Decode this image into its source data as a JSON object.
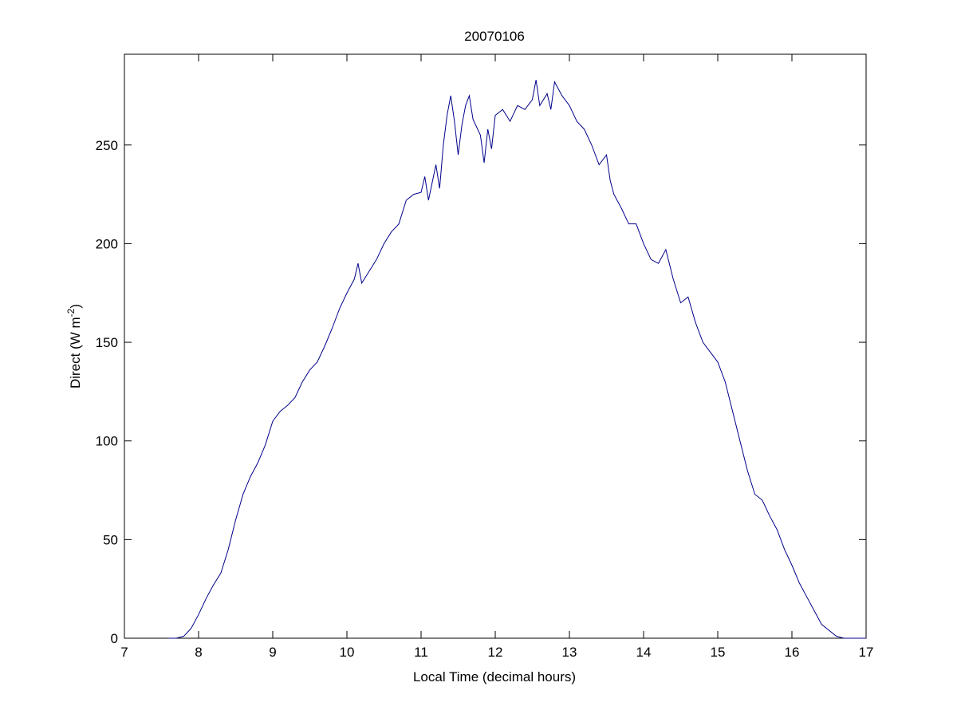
{
  "chart_data": {
    "type": "line",
    "title": "20070106",
    "xlabel": "Local Time (decimal hours)",
    "ylabel_parts": [
      "Direct (W m",
      "-2",
      ")"
    ],
    "x": [
      7.6,
      7.7,
      7.8,
      7.9,
      8.0,
      8.1,
      8.2,
      8.3,
      8.4,
      8.5,
      8.6,
      8.7,
      8.8,
      8.9,
      9.0,
      9.1,
      9.2,
      9.3,
      9.4,
      9.5,
      9.6,
      9.7,
      9.8,
      9.9,
      10.0,
      10.1,
      10.15,
      10.2,
      10.3,
      10.4,
      10.5,
      10.6,
      10.7,
      10.8,
      10.9,
      11.0,
      11.05,
      11.1,
      11.2,
      11.25,
      11.3,
      11.35,
      11.4,
      11.45,
      11.5,
      11.55,
      11.6,
      11.65,
      11.7,
      11.8,
      11.85,
      11.9,
      11.95,
      12.0,
      12.1,
      12.2,
      12.3,
      12.4,
      12.5,
      12.55,
      12.6,
      12.7,
      12.75,
      12.8,
      12.9,
      13.0,
      13.1,
      13.2,
      13.3,
      13.4,
      13.5,
      13.55,
      13.6,
      13.7,
      13.8,
      13.9,
      14.0,
      14.1,
      14.2,
      14.3,
      14.4,
      14.5,
      14.6,
      14.7,
      14.8,
      14.9,
      15.0,
      15.1,
      15.2,
      15.3,
      15.4,
      15.5,
      15.6,
      15.7,
      15.8,
      15.9,
      16.0,
      16.1,
      16.2,
      16.3,
      16.4,
      16.5,
      16.6,
      16.7,
      16.9,
      17.0
    ],
    "series": [
      {
        "name": "Direct",
        "color": "#00008b",
        "values": [
          0,
          0,
          1,
          5,
          12,
          20,
          27,
          33,
          45,
          60,
          73,
          82,
          89,
          98,
          110,
          115,
          118,
          122,
          130,
          136,
          140,
          148,
          157,
          167,
          175,
          182,
          190,
          180,
          186,
          192,
          200,
          206,
          210,
          222,
          225,
          226,
          234,
          222,
          240,
          228,
          250,
          265,
          275,
          262,
          245,
          260,
          270,
          275,
          263,
          255,
          241,
          258,
          248,
          265,
          268,
          262,
          270,
          268,
          273,
          283,
          270,
          276,
          268,
          282,
          275,
          270,
          262,
          258,
          250,
          240,
          245,
          232,
          225,
          218,
          210,
          210,
          200,
          192,
          190,
          197,
          182,
          170,
          173,
          160,
          150,
          145,
          140,
          130,
          115,
          100,
          85,
          73,
          70,
          62,
          55,
          45,
          37,
          28,
          21,
          14,
          7,
          4,
          1,
          0,
          0,
          0
        ]
      }
    ],
    "xlim": [
      7,
      17
    ],
    "xticks": [
      7,
      8,
      9,
      10,
      11,
      12,
      13,
      14,
      15,
      16,
      17
    ],
    "ylim": [
      0,
      296
    ],
    "yticks": [
      0,
      50,
      100,
      150,
      200,
      250
    ]
  }
}
